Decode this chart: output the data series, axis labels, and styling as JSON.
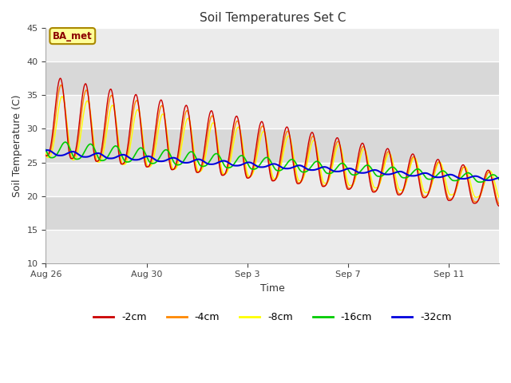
{
  "title": "Soil Temperatures Set C",
  "xlabel": "Time",
  "ylabel": "Soil Temperature (C)",
  "ylim": [
    10,
    45
  ],
  "xlim_days": [
    0,
    18
  ],
  "xtick_labels": [
    "Aug 26",
    "Aug 30",
    "Sep 3",
    "Sep 7",
    "Sep 11"
  ],
  "xtick_positions": [
    0,
    4,
    8,
    12,
    16
  ],
  "series_colors": [
    "#cc0000",
    "#ff8800",
    "#ffff00",
    "#00cc00",
    "#0000dd"
  ],
  "series_labels": [
    "-2cm",
    "-4cm",
    "-8cm",
    "-16cm",
    "-32cm"
  ],
  "plot_bg_light": "#ebebeb",
  "plot_bg_dark": "#d8d8d8",
  "annotation_text": "BA_met",
  "annotation_bg": "#ffff99",
  "annotation_border": "#aa8800",
  "band_yticks": [
    10,
    15,
    20,
    25,
    30,
    35,
    40,
    45
  ],
  "n_days": 18,
  "pts_per_day": 96
}
